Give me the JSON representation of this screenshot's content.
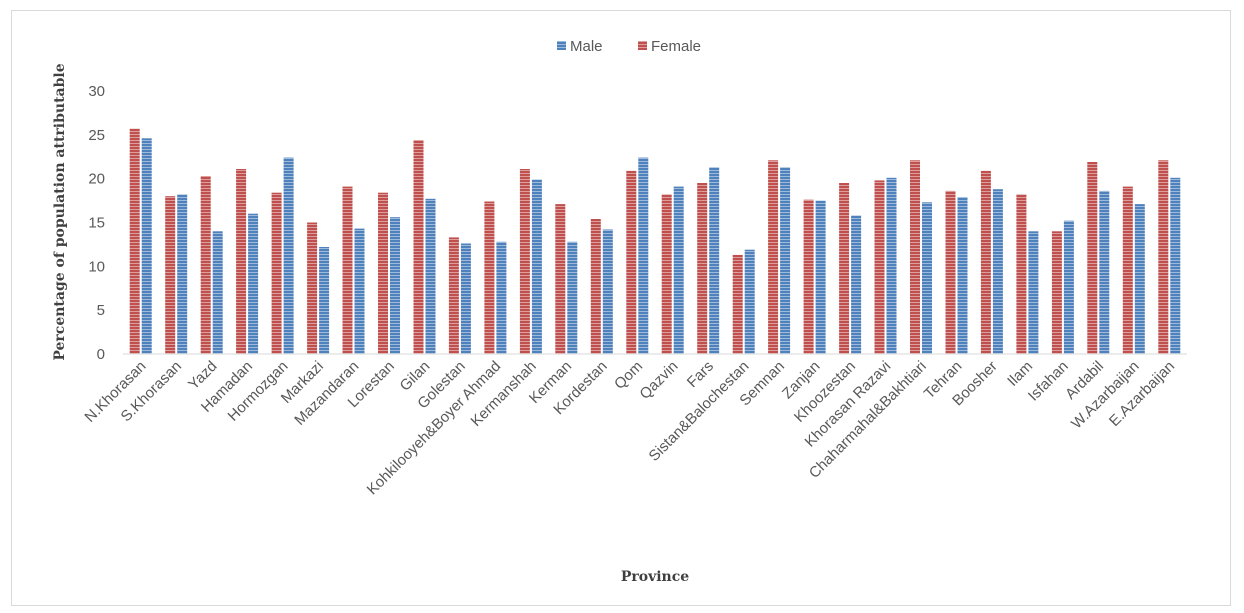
{
  "chart_data": {
    "type": "bar",
    "xlabel": "Province",
    "ylabel": "Percentage of population attributable",
    "ylim": [
      0,
      30
    ],
    "yticks": [
      0,
      5,
      10,
      15,
      20,
      25,
      30
    ],
    "legend_position": "top",
    "categories": [
      "N.Khorasan",
      "S.Khorasan",
      "Yazd",
      "Hamadan",
      "Hormozgan",
      "Markazi",
      "Mazandaran",
      "Lorestan",
      "Gilan",
      "Golestan",
      "Kohkilooyeh&Boyer Ahmad",
      "Kermanshah",
      "Kerman",
      "Kordestan",
      "Qom",
      "Qazvin",
      "Fars",
      "Sistan&Balochestan",
      "Semnan",
      "Zanjan",
      "Khoozestan",
      "Khorasan Razavi",
      "Chaharmahal&Bakhtiari",
      "Tehran",
      "Boosher",
      "Ilam",
      "Isfahan",
      "Ardabil",
      "W.Azarbaijan",
      "E.Azarbaijan"
    ],
    "series": [
      {
        "name": "Female",
        "color": "#c0504d",
        "values": [
          25.7,
          18.0,
          20.3,
          21.1,
          18.4,
          15.0,
          19.1,
          18.4,
          24.4,
          13.3,
          17.4,
          21.1,
          17.1,
          15.4,
          20.9,
          18.2,
          19.5,
          11.3,
          22.1,
          17.6,
          19.5,
          19.8,
          22.1,
          18.6,
          20.9,
          18.2,
          14.0,
          21.9,
          19.1,
          22.1
        ]
      },
      {
        "name": "Male",
        "color": "#4f81bd",
        "values": [
          24.6,
          18.2,
          14.0,
          16.0,
          22.4,
          12.2,
          14.3,
          15.6,
          17.7,
          12.6,
          12.8,
          19.9,
          12.8,
          14.2,
          22.4,
          19.1,
          21.3,
          11.9,
          21.3,
          17.5,
          15.8,
          20.1,
          17.3,
          17.9,
          18.8,
          14.0,
          15.2,
          18.6,
          17.1,
          20.1
        ]
      }
    ],
    "legend": [
      {
        "name": "Male",
        "color": "#4f81bd"
      },
      {
        "name": "Female",
        "color": "#c0504d"
      }
    ]
  }
}
